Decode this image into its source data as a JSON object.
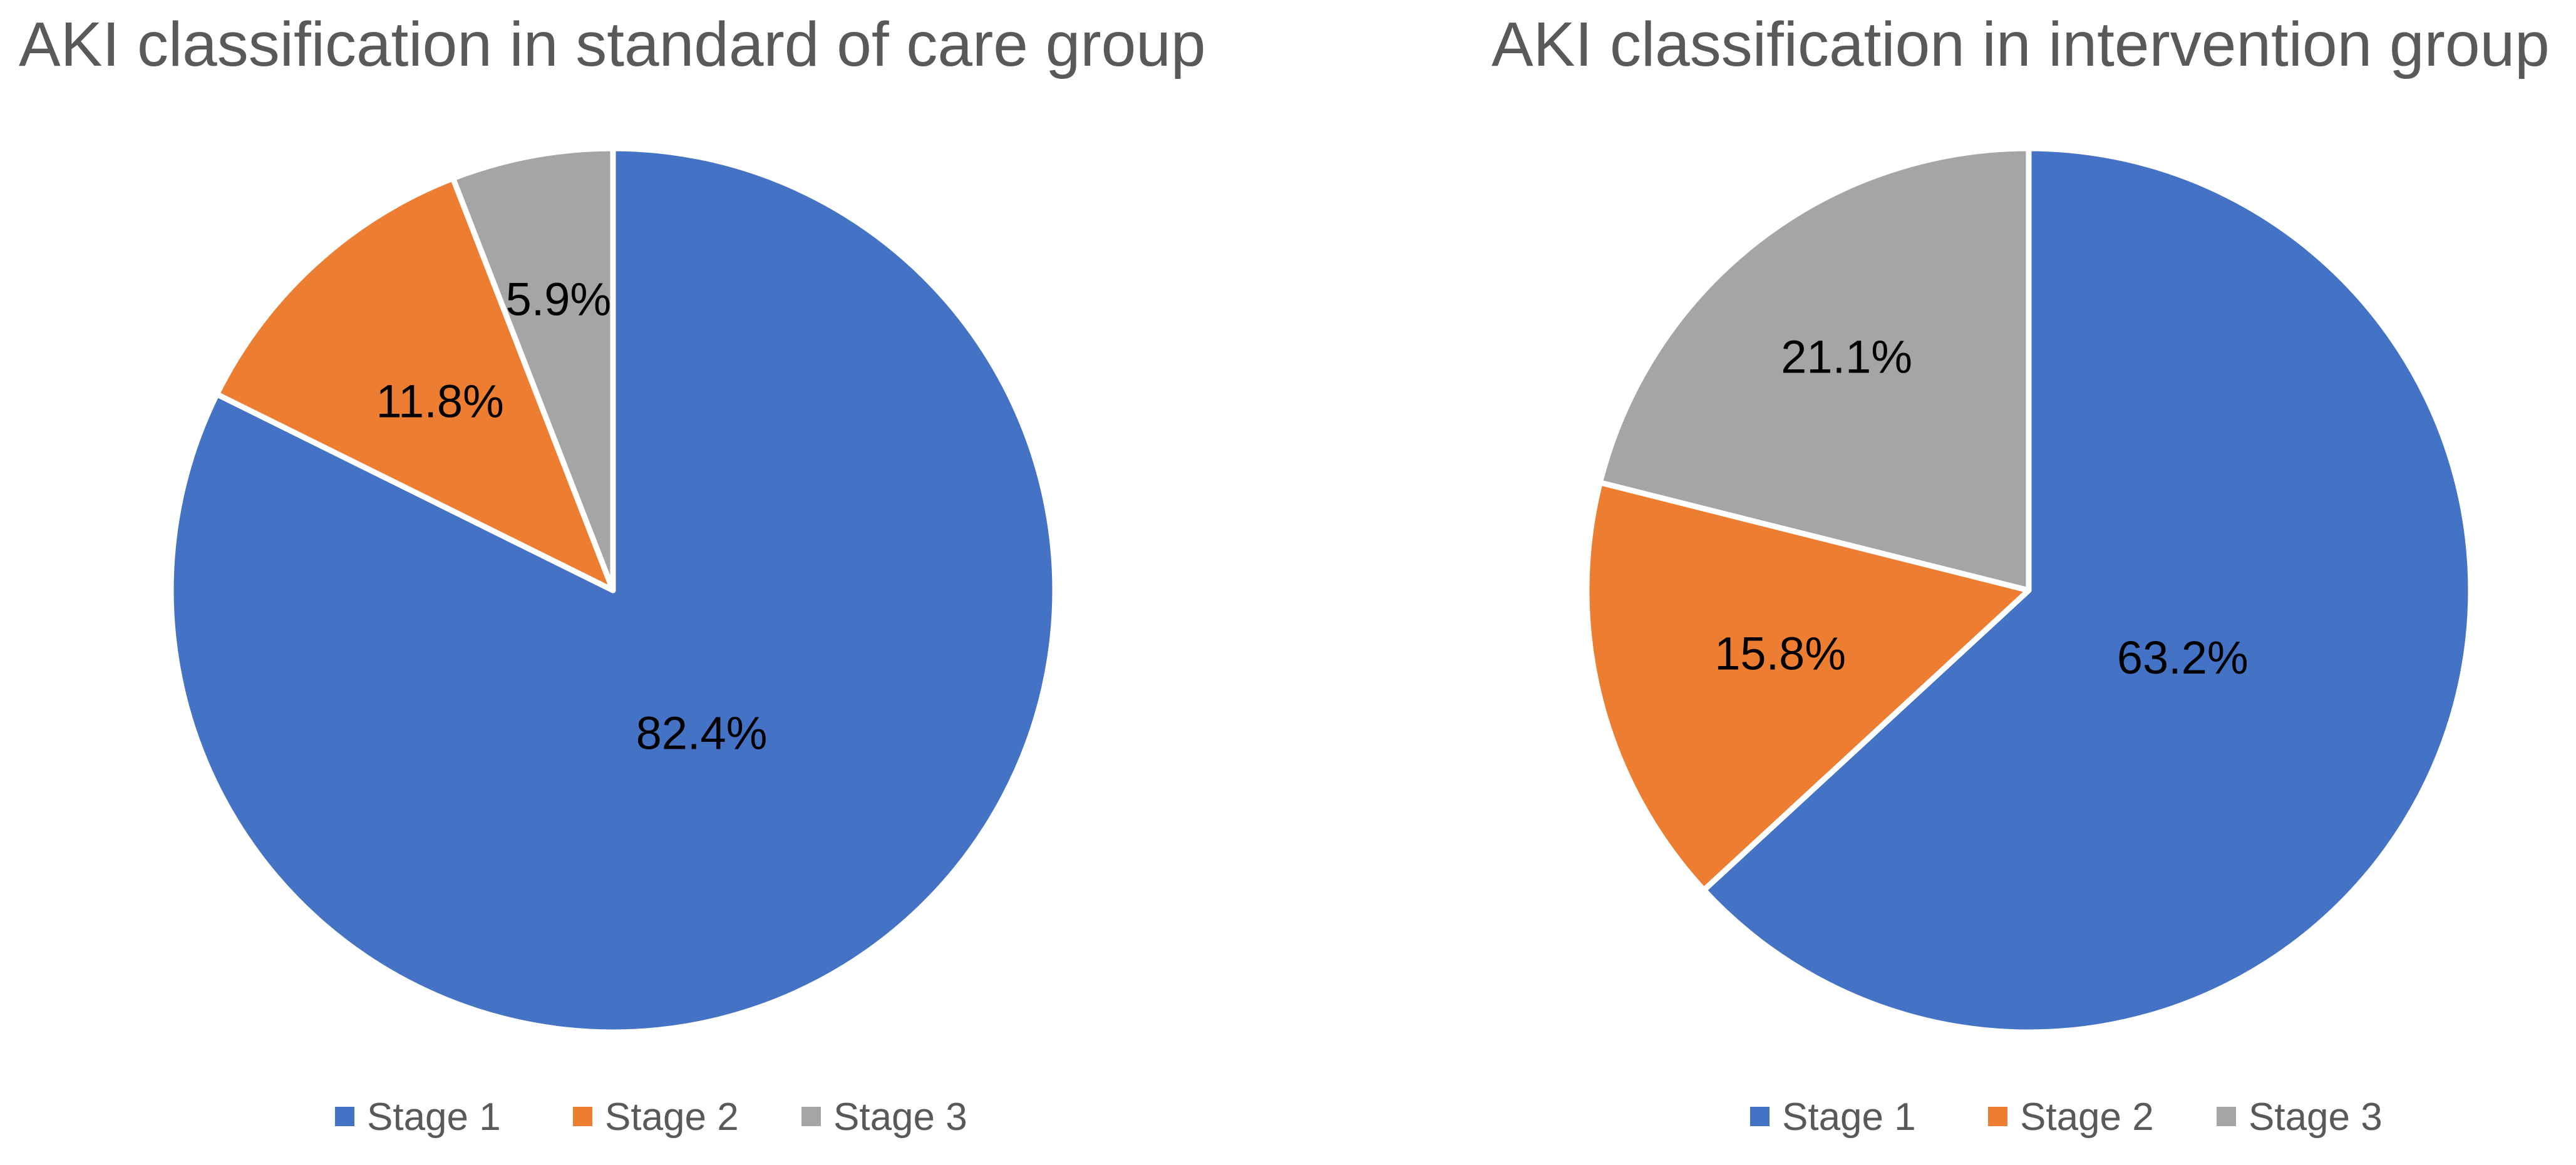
{
  "chart_data": [
    {
      "type": "pie",
      "title": "AKI classification in standard of care group",
      "categories": [
        "Stage 1",
        "Stage 2",
        "Stage 3"
      ],
      "values": [
        82.4,
        11.8,
        5.9
      ],
      "data_labels": [
        "82.4%",
        "11.8%",
        "5.9%"
      ],
      "colors": [
        "#4472C4",
        "#ED7D31",
        "#A5A5A5"
      ],
      "legend": {
        "placement": "bottom",
        "entries": [
          "Stage 1",
          "Stage 2",
          "Stage 3"
        ]
      }
    },
    {
      "type": "pie",
      "title": "AKI classification in intervention group",
      "categories": [
        "Stage 1",
        "Stage 2",
        "Stage 3"
      ],
      "values": [
        63.2,
        15.8,
        21.1
      ],
      "data_labels": [
        "63.2%",
        "15.8%",
        "21.1%"
      ],
      "colors": [
        "#4472C4",
        "#ED7D31",
        "#A5A5A5"
      ],
      "legend": {
        "placement": "bottom",
        "entries": [
          "Stage 1",
          "Stage 2",
          "Stage 3"
        ]
      }
    }
  ]
}
